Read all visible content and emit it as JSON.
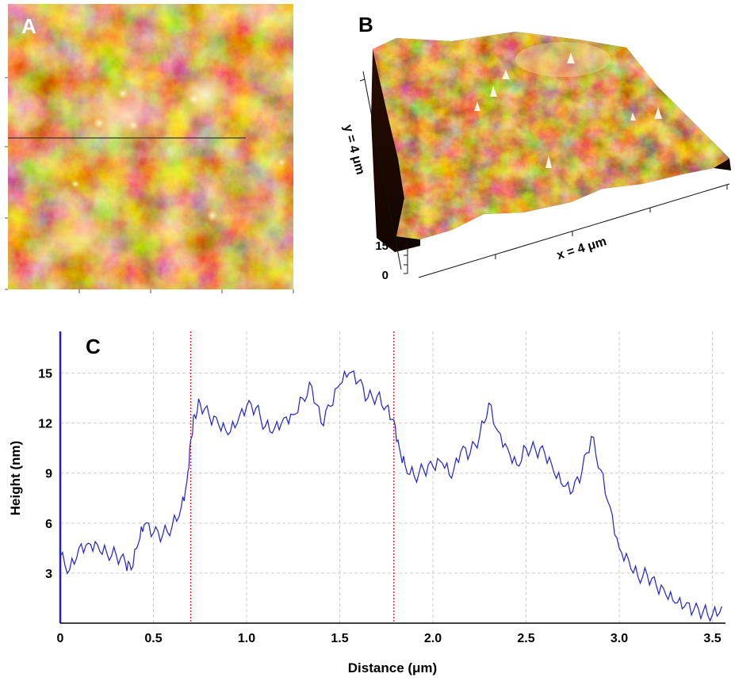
{
  "panels": {
    "a_label": "A",
    "b_label": "B",
    "c_label": "C"
  },
  "panel_b": {
    "y_axis_label": "y = 4 μm",
    "x_axis_label": "x = 4 μm",
    "z_tick_top": "15",
    "z_tick_bottom": "0"
  },
  "colors": {
    "afm_dark": "#2a0d00",
    "afm_mid": "#b5560f",
    "afm_bright": "#ffe08a",
    "profile_line": "#2222cc",
    "marker_line": "#e02020",
    "grid": "#cccccc"
  },
  "chart_data": {
    "type": "line",
    "title": "",
    "xlabel": "Distance (μm)",
    "ylabel": "Height (nm)",
    "xlim": [
      0,
      3.57
    ],
    "ylim": [
      0,
      17.5
    ],
    "x_ticks": [
      "0",
      "0.5",
      "1.0",
      "1.5",
      "2.0",
      "2.5",
      "3.0",
      "3.5"
    ],
    "y_ticks": [
      "3",
      "6",
      "9",
      "12",
      "15"
    ],
    "grid": true,
    "markers_x": [
      0.7,
      1.79
    ],
    "series": [
      {
        "name": "",
        "x": [
          0,
          0.05,
          0.1,
          0.15,
          0.2,
          0.25,
          0.3,
          0.35,
          0.38,
          0.42,
          0.45,
          0.5,
          0.55,
          0.6,
          0.65,
          0.68,
          0.7,
          0.72,
          0.75,
          0.8,
          0.85,
          0.9,
          0.95,
          1.0,
          1.05,
          1.1,
          1.15,
          1.2,
          1.25,
          1.3,
          1.35,
          1.4,
          1.45,
          1.5,
          1.55,
          1.6,
          1.65,
          1.7,
          1.75,
          1.79,
          1.82,
          1.85,
          1.9,
          1.95,
          2.0,
          2.05,
          2.1,
          2.15,
          2.2,
          2.25,
          2.3,
          2.35,
          2.4,
          2.45,
          2.5,
          2.55,
          2.6,
          2.65,
          2.7,
          2.75,
          2.8,
          2.85,
          2.9,
          2.95,
          3.0,
          3.05,
          3.1,
          3.15,
          3.2,
          3.25,
          3.3,
          3.35,
          3.4,
          3.45,
          3.5,
          3.55
        ],
        "y": [
          4.0,
          3.2,
          4.5,
          4.8,
          4.7,
          4.2,
          4.1,
          3.6,
          3.2,
          4.8,
          5.9,
          5.4,
          5.3,
          5.8,
          7.0,
          8.5,
          11.0,
          12.5,
          13.2,
          12.4,
          11.9,
          11.3,
          12.0,
          13.0,
          12.9,
          11.8,
          11.7,
          12.3,
          12.5,
          13.5,
          14.2,
          12.0,
          13.0,
          14.3,
          15.0,
          14.5,
          13.5,
          13.6,
          13.0,
          12.2,
          10.5,
          9.5,
          8.8,
          9.2,
          9.4,
          9.6,
          8.7,
          10.3,
          10.2,
          11.2,
          13.2,
          11.5,
          10.5,
          9.5,
          10.5,
          10.4,
          10.2,
          9.0,
          8.2,
          7.9,
          9.1,
          11.2,
          9.2,
          7.0,
          4.5,
          3.8,
          2.8,
          2.9,
          2.2,
          1.7,
          1.2,
          1.0,
          0.8,
          0.7,
          0.5,
          1.0
        ]
      }
    ]
  }
}
